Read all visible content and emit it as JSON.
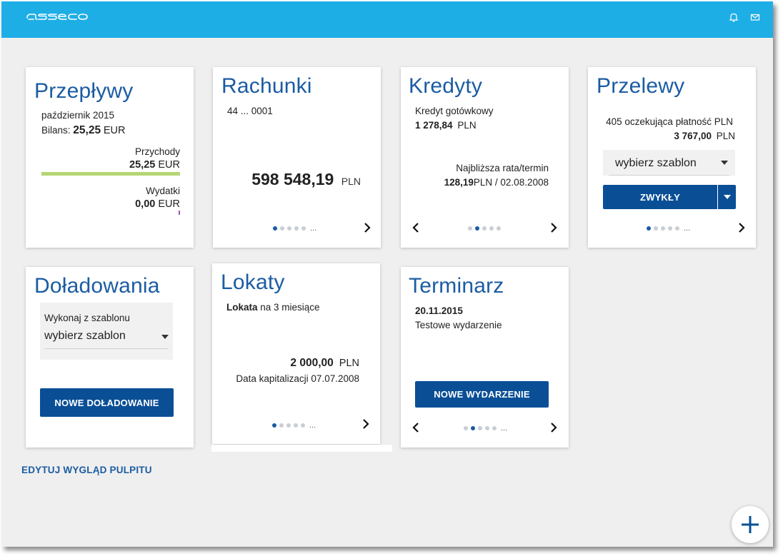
{
  "header": {
    "logo_alt": "asseco",
    "icons": [
      "bell-icon",
      "mail-icon"
    ]
  },
  "cards": {
    "przeplywy": {
      "title": "Przepływy",
      "period": "październik 2015",
      "balance_label": "Bilans:",
      "balance_value": "25,25",
      "balance_currency": "EUR",
      "income_label": "Przychody",
      "income_value": "25,25",
      "income_currency": "EUR",
      "income_bar_fraction": 1.0,
      "expense_label": "Wydatki",
      "expense_value": "0,00",
      "expense_currency": "EUR"
    },
    "rachunki": {
      "title": "Rachunki",
      "account_number": "44 ... 0001",
      "balance": "598 548,19",
      "currency": "PLN",
      "active_dot": 1,
      "dot_count": 5,
      "dots_more": "..."
    },
    "kredyty": {
      "title": "Kredyty",
      "loan_name": "Kredyt gotówkowy",
      "loan_amount": "1 278,84",
      "loan_currency": "PLN",
      "next_label": "Najbliższa rata/termin",
      "next_amount": "128,19",
      "next_rest": "PLN / 02.08.2008",
      "active_dot": 2,
      "dot_count": 5
    },
    "przelewy": {
      "title": "Przelewy",
      "pending_text": "405 oczekująca płatność PLN",
      "pending_amount": "3 767,00",
      "pending_currency": "PLN",
      "template_select": "wybierz szablon",
      "button_label": "ZWYKŁY",
      "active_dot": 1,
      "dot_count": 5,
      "dots_more": "..."
    },
    "doladowania": {
      "title": "Doładowania",
      "template_label": "Wykonaj z szablonu",
      "template_select": "wybierz szablon",
      "button_label": "NOWE DOŁADOWANIE"
    },
    "lokaty": {
      "title": "Lokaty",
      "deposit_name_bold": "Lokata",
      "deposit_name_rest": " na 3 miesiące",
      "amount": "2 000,00",
      "currency": "PLN",
      "cap_label": "Data kapitalizacji 07.07.2008",
      "active_dot": 1,
      "dot_count": 5,
      "dots_more": "..."
    },
    "terminarz": {
      "title": "Terminarz",
      "date": "20.11.2015",
      "event": "Testowe wydarzenie",
      "button_label": "NOWE WYDARZENIE",
      "active_dot": 2,
      "dot_count": 5,
      "dots_more": "..."
    }
  },
  "edit_link": "EDYTUJ WYGLĄD PULPITU",
  "fab_label": "+",
  "colors": {
    "topbar": "#1eaee6",
    "title_blue": "#1b5ca3",
    "button_blue": "#0a4f96",
    "income_bar": "#b5d573",
    "expense_bar": "#9b59b6"
  }
}
